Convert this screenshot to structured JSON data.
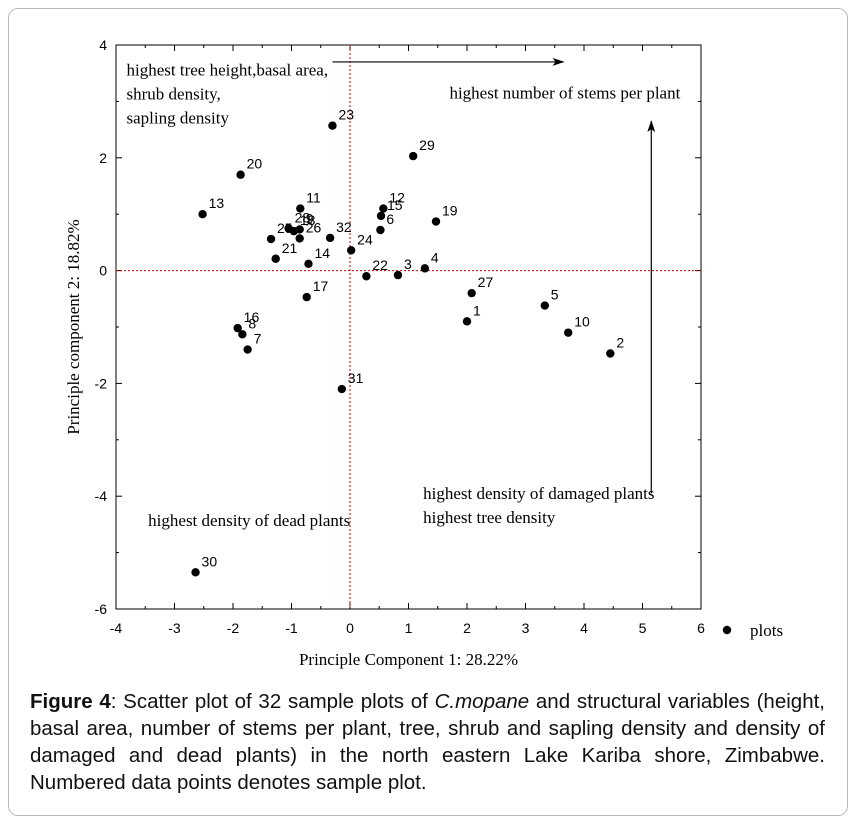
{
  "chart_data": {
    "type": "scatter",
    "xlabel": "Principle Component 1: 28.22%",
    "ylabel": "Principle component 2: 18.82%",
    "xlim": [
      -4,
      6
    ],
    "ylim": [
      -6,
      4
    ],
    "xticks": [
      "-4",
      "-3",
      "-2",
      "-1",
      "0",
      "1",
      "2",
      "3",
      "4",
      "5",
      "6"
    ],
    "yticks": [
      "-6",
      "-4",
      "-2",
      "0",
      "2",
      "4"
    ],
    "grid": false,
    "reference_lines": {
      "x": 0,
      "y": 0,
      "color": "#cc0000",
      "style": "dotted"
    },
    "legend": {
      "position": "right",
      "label": "plots"
    },
    "annotations": [
      {
        "lines": [
          "highest tree height,basal area,",
          "shrub density,",
          "sapling density"
        ],
        "x": -3.82,
        "y": 3.46
      },
      {
        "lines": [
          "highest number of stems per plant"
        ],
        "x": 1.7,
        "y": 3.05
      },
      {
        "lines": [
          "highest density of damaged plants",
          "highest tree density"
        ],
        "x": 1.25,
        "y": -4.05
      },
      {
        "lines": [
          "highest density of dead plants"
        ],
        "x": -3.45,
        "y": -4.53
      }
    ],
    "arrows": [
      {
        "x1": -0.3,
        "y1": 3.7,
        "x2": 3.65,
        "y2": 3.7
      },
      {
        "x1": 5.15,
        "y1": -3.95,
        "x2": 5.15,
        "y2": 2.65
      }
    ],
    "series": [
      {
        "points": [
          {
            "label": "1",
            "x": 2.0,
            "y": -0.9
          },
          {
            "label": "2",
            "x": 4.45,
            "y": -1.47
          },
          {
            "label": "3",
            "x": 0.82,
            "y": -0.08
          },
          {
            "label": "4",
            "x": 1.28,
            "y": 0.04
          },
          {
            "label": "5",
            "x": 3.33,
            "y": -0.62
          },
          {
            "label": "6",
            "x": 0.52,
            "y": 0.72
          },
          {
            "label": "7",
            "x": -1.75,
            "y": -1.4
          },
          {
            "label": "8",
            "x": -1.84,
            "y": -1.13
          },
          {
            "label": "9",
            "x": -0.86,
            "y": 0.73
          },
          {
            "label": "10",
            "x": 3.73,
            "y": -1.1
          },
          {
            "label": "11",
            "x": -0.85,
            "y": 1.1
          },
          {
            "label": "12",
            "x": 0.57,
            "y": 1.1
          },
          {
            "label": "13",
            "x": -2.52,
            "y": 1.0
          },
          {
            "label": "14",
            "x": -0.71,
            "y": 0.12
          },
          {
            "label": "15",
            "x": 0.53,
            "y": 0.97
          },
          {
            "label": "16",
            "x": -1.92,
            "y": -1.02
          },
          {
            "label": "17",
            "x": -0.74,
            "y": -0.47
          },
          {
            "label": "18",
            "x": -0.96,
            "y": 0.7
          },
          {
            "label": "19",
            "x": 1.47,
            "y": 0.87
          },
          {
            "label": "20",
            "x": -1.87,
            "y": 1.7
          },
          {
            "label": "21",
            "x": -1.27,
            "y": 0.21
          },
          {
            "label": "22",
            "x": 0.28,
            "y": -0.1
          },
          {
            "label": "23",
            "x": -0.3,
            "y": 2.57
          },
          {
            "label": "24",
            "x": 0.02,
            "y": 0.36
          },
          {
            "label": "25",
            "x": -1.35,
            "y": 0.56
          },
          {
            "label": "26",
            "x": -0.86,
            "y": 0.57
          },
          {
            "label": "27",
            "x": 2.08,
            "y": -0.4
          },
          {
            "label": "28",
            "x": -1.05,
            "y": 0.75
          },
          {
            "label": "29",
            "x": 1.08,
            "y": 2.03
          },
          {
            "label": "30",
            "x": -2.64,
            "y": -5.35
          },
          {
            "label": "31",
            "x": -0.14,
            "y": -2.1
          },
          {
            "label": "32",
            "x": -0.34,
            "y": 0.58
          }
        ]
      }
    ]
  },
  "caption": {
    "label": "Figure 4",
    "text_before": ": Scatter plot of 32 sample plots of ",
    "species": "C.mopane",
    "text_after": " and structural variables (height, basal area, number of stems per plant, tree, shrub and sapling density and density of damaged and dead plants) in the north eastern Lake Kariba shore, Zimbabwe. Numbered data points denotes sample plot."
  }
}
